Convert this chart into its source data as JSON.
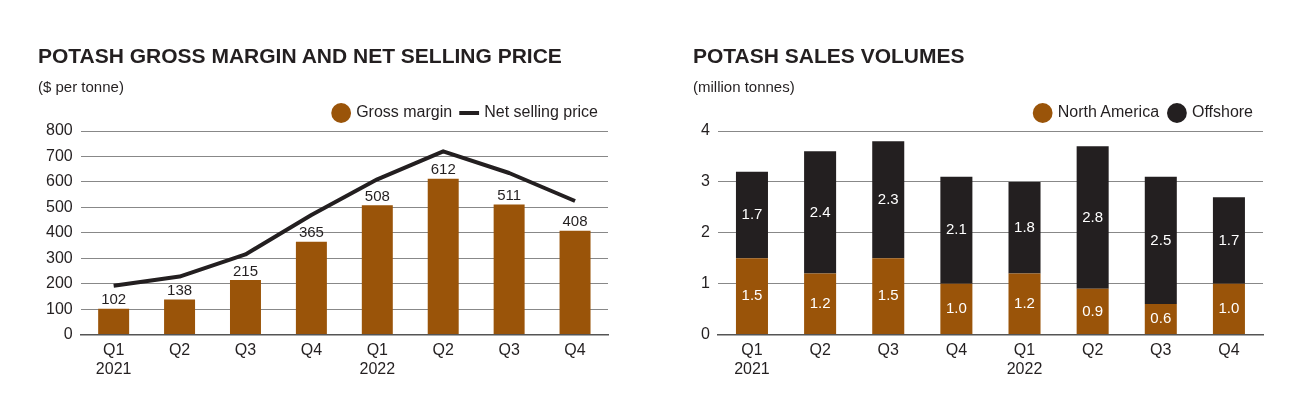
{
  "chart_data": [
    {
      "type": "bar",
      "title": "POTASH GROSS MARGIN AND NET SELLING PRICE",
      "ylabel": "($ per tonne)",
      "categories": [
        "Q1\n2021",
        "Q2",
        "Q3",
        "Q4",
        "Q1\n2022",
        "Q2",
        "Q3",
        "Q4"
      ],
      "ylim": [
        0,
        800
      ],
      "yticks": [
        0,
        100,
        200,
        300,
        400,
        500,
        600,
        700,
        800
      ],
      "grid": "y",
      "legend": "top right",
      "series": [
        {
          "name": "Gross margin",
          "color": "#9a5409",
          "values": [
            102,
            138,
            215,
            365,
            508,
            612,
            511,
            408
          ],
          "value_labels": [
            "102",
            "138",
            "215",
            "365",
            "508",
            "612",
            "511",
            "408"
          ]
        },
        {
          "name": "Net selling price",
          "type": "line",
          "color": "#231f20",
          "marker": "none",
          "values": [
            192,
            228,
            315,
            470,
            610,
            720,
            635,
            525
          ]
        }
      ]
    },
    {
      "type": "bar",
      "title": "POTASH SALES VOLUMES",
      "ylabel": "(million tonnes)",
      "categories": [
        "Q1\n2021",
        "Q2",
        "Q3",
        "Q4",
        "Q1\n2022",
        "Q2",
        "Q3",
        "Q4"
      ],
      "ylim": [
        0,
        4
      ],
      "yticks": [
        0,
        1,
        2,
        3,
        4
      ],
      "grid": "y",
      "legend": "top right",
      "stacked": true,
      "series": [
        {
          "name": "North America",
          "color": "#9a5409",
          "values": [
            1.5,
            1.2,
            1.5,
            1.0,
            1.2,
            0.9,
            0.6,
            1.0
          ],
          "value_labels": [
            "1.5",
            "1.2",
            "1.5",
            "1.0",
            "1.2",
            "0.9",
            "0.6",
            "1.0"
          ]
        },
        {
          "name": "Offshore",
          "color": "#231f20",
          "values": [
            1.7,
            2.4,
            2.3,
            2.1,
            1.8,
            2.8,
            2.5,
            1.7
          ],
          "value_labels": [
            "1.7",
            "2.4",
            "2.3",
            "2.1",
            "1.8",
            "2.8",
            "2.5",
            "1.7"
          ]
        }
      ]
    }
  ]
}
